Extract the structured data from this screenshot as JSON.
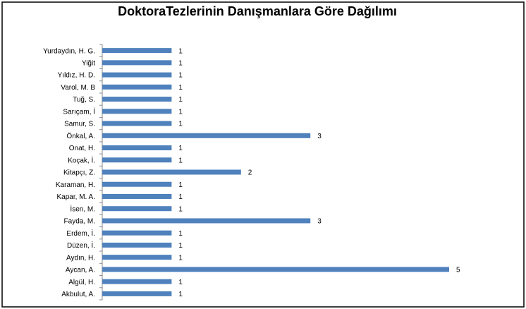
{
  "chart_data": {
    "type": "bar",
    "orientation": "horizontal",
    "title": "DoktoraTezlerinin Danışmanlara Göre Dağılımı",
    "categories": [
      "Yurdaydın, H. G.",
      "Yiğit",
      "Yıldız, H. D.",
      "Varol, M. B",
      "Tuğ, S.",
      "Sarıçam, İ",
      "Samur, S.",
      "Önkal, A.",
      "Onat, H.",
      "Koçak, İ.",
      "Kitapçı, Z.",
      "Karaman, H.",
      "Kapar, M. A.",
      "İsen, M.",
      "Fayda, M.",
      "Erdem, İ.",
      "Düzen, İ.",
      "Aydın, H.",
      "Aycan, A.",
      "Algül, H.",
      "Akbulut, A."
    ],
    "values": [
      1,
      1,
      1,
      1,
      1,
      1,
      1,
      3,
      1,
      1,
      2,
      1,
      1,
      1,
      3,
      1,
      1,
      1,
      5,
      1,
      1
    ],
    "color": "#4f81bd",
    "xlim": [
      0,
      5
    ]
  }
}
